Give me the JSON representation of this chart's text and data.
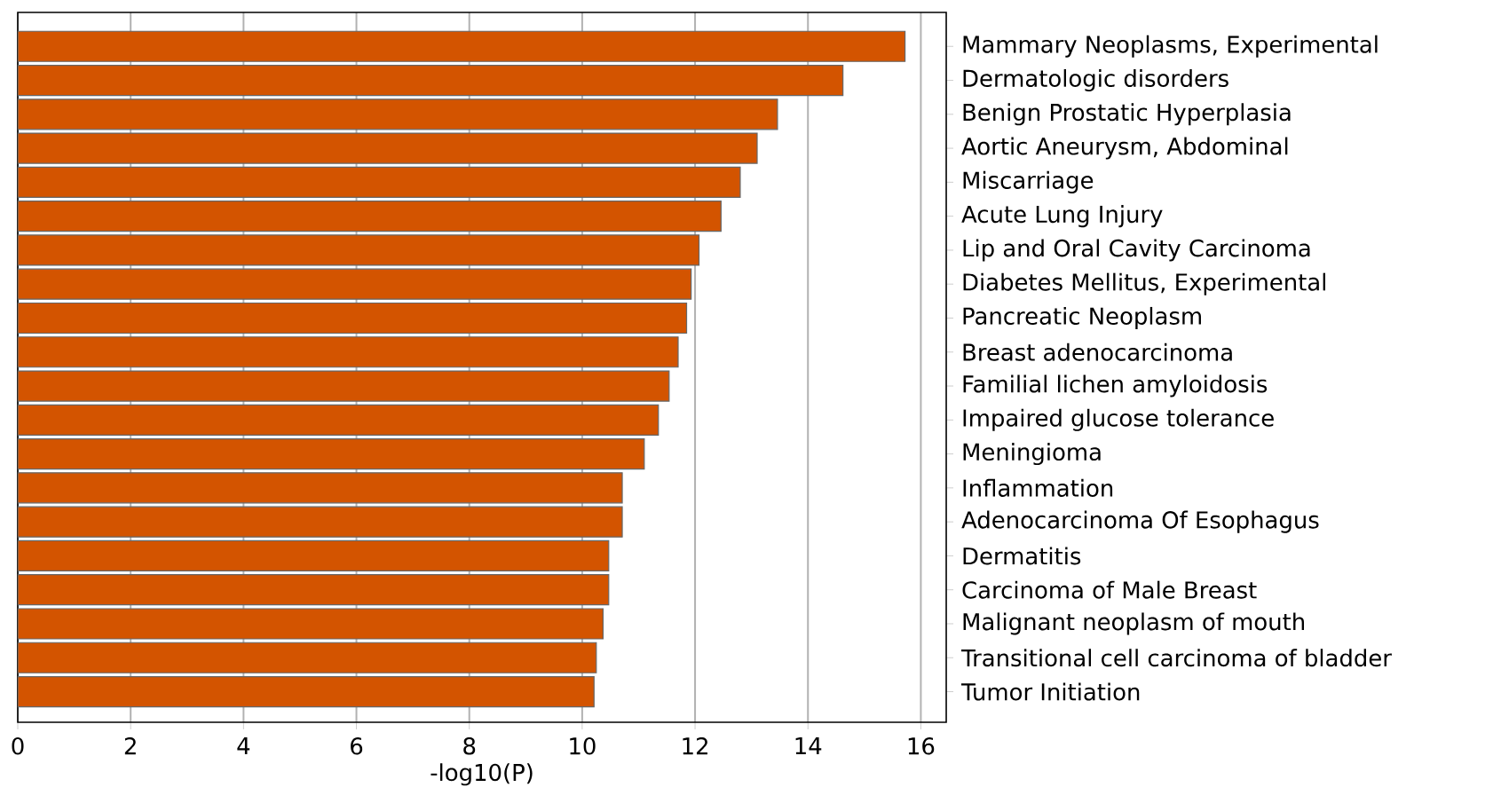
{
  "chart_data": {
    "type": "bar",
    "orientation": "horizontal",
    "xlabel": "-log10(P)",
    "categories": [
      "Mammary Neoplasms, Experimental",
      "Dermatologic disorders",
      "Benign Prostatic Hyperplasia",
      "Aortic Aneurysm, Abdominal",
      "Miscarriage",
      "Acute Lung Injury",
      "Lip and Oral Cavity Carcinoma",
      "Diabetes Mellitus, Experimental",
      "Pancreatic Neoplasm",
      "Breast adenocarcinoma",
      "Familial lichen amyloidosis",
      "Impaired glucose tolerance",
      "Meningioma",
      "Inflammation",
      "Adenocarcinoma Of Esophagus",
      "Dermatitis",
      "Carcinoma of Male Breast",
      "Malignant neoplasm of mouth",
      "Transitional cell carcinoma of bladder",
      "Tumor Initiation"
    ],
    "values": [
      15.72,
      14.62,
      13.46,
      13.1,
      12.8,
      12.46,
      12.07,
      11.93,
      11.85,
      11.7,
      11.54,
      11.35,
      11.1,
      10.71,
      10.71,
      10.47,
      10.47,
      10.37,
      10.25,
      10.21
    ],
    "color": "#d35400",
    "xlim": [
      0,
      16.45
    ],
    "xticks": [
      0,
      2,
      4,
      6,
      8,
      10,
      12,
      14,
      16
    ],
    "grid": "x"
  }
}
